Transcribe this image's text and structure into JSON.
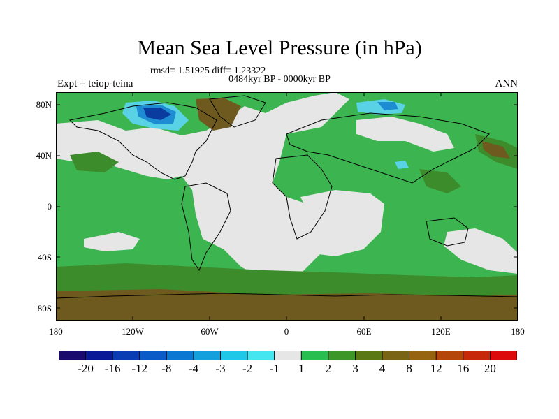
{
  "title": "Mean Sea Level Pressure (in hPa)",
  "stats": "rmsd= 1.51925 diff= 1.23322",
  "period": "0484kyr BP - 0000kyr BP",
  "experiment": "Expt = teiop-teina",
  "season": "ANN",
  "lat_labels": [
    "80N",
    "40N",
    "0",
    "40S",
    "80S"
  ],
  "lon_labels": [
    "180",
    "120W",
    "60W",
    "0",
    "60E",
    "120E",
    "180"
  ],
  "colorbar": {
    "labels": [
      "-20",
      "-16",
      "-12",
      "-8",
      "-4",
      "-3",
      "-2",
      "-1",
      "1",
      "2",
      "3",
      "4",
      "8",
      "12",
      "16",
      "20"
    ],
    "colors": [
      "#1a0a6e",
      "#0a1a96",
      "#0a3cb4",
      "#0a5ac8",
      "#0a78d2",
      "#14a0dc",
      "#1ec8e6",
      "#46e6f0",
      "#e6e6e6",
      "#28be50",
      "#3c9628",
      "#5a7814",
      "#786414",
      "#966410",
      "#b4460a",
      "#c8280a",
      "#dc0a0a"
    ]
  },
  "palette": {
    "neutral": "#e6e6e6",
    "pos1": "#3cb450",
    "pos2": "#3c8c2c",
    "pos3": "#6e5a1e",
    "neg1": "#5ad2e6",
    "neg2": "#1e8cd2",
    "neg3": "#0a3ca0"
  }
}
